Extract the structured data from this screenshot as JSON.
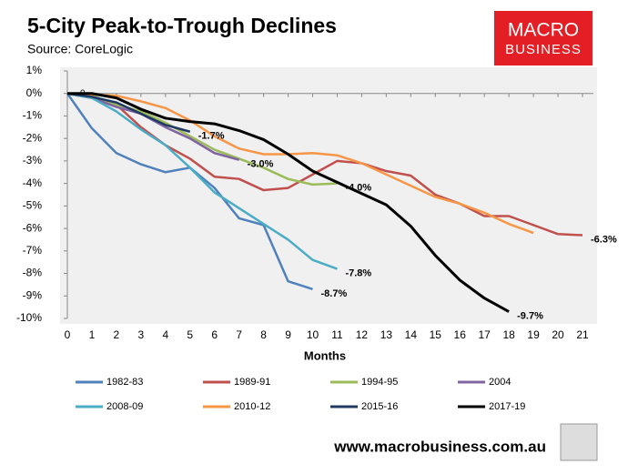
{
  "chart_data": {
    "type": "line",
    "title": "5-City Peak-to-Trough Declines",
    "subtitle": "Source: CoreLogic",
    "logo": [
      "MACRO",
      "BUSINESS"
    ],
    "footer": "www.macrobusiness.com.au",
    "xlabel": "Months",
    "annotations": [
      {
        "text": "0",
        "x": 0.55,
        "y": 0
      }
    ],
    "xlim": [
      0,
      21
    ],
    "xticks": [
      0,
      1,
      2,
      3,
      4,
      5,
      6,
      7,
      8,
      9,
      10,
      11,
      12,
      13,
      14,
      15,
      16,
      17,
      18,
      19,
      20,
      21
    ],
    "ylim": [
      -10,
      1
    ],
    "yticks": [
      {
        "value": 1,
        "label": "1%"
      },
      {
        "value": 0,
        "label": "0%"
      },
      {
        "value": -1,
        "label": "-1%"
      },
      {
        "value": -2,
        "label": "-2%"
      },
      {
        "value": -3,
        "label": "-3%"
      },
      {
        "value": -4,
        "label": "-4%"
      },
      {
        "value": -5,
        "label": "-5%"
      },
      {
        "value": -6,
        "label": "-6%"
      },
      {
        "value": -7,
        "label": "-7%"
      },
      {
        "value": -8,
        "label": "-8%"
      },
      {
        "value": -9,
        "label": "-9%"
      },
      {
        "value": -10,
        "label": "-10%"
      }
    ],
    "grid": false,
    "series": [
      {
        "name": "1982-83",
        "color": "#4f81bd",
        "values": [
          0,
          -1.55,
          -2.65,
          -3.15,
          -3.5,
          -3.3,
          -4.2,
          -5.55,
          -5.85,
          -8.35,
          -8.7
        ],
        "value_labels": [
          null,
          null,
          null,
          null,
          null,
          null,
          null,
          null,
          null,
          null,
          "-8.7%"
        ]
      },
      {
        "name": "1989-91",
        "color": "#c0504d",
        "values": [
          0,
          -0.2,
          -0.5,
          -1.5,
          -2.3,
          -2.9,
          -3.7,
          -3.8,
          -4.3,
          -4.2,
          -3.6,
          -3.0,
          -3.1,
          -3.45,
          -3.65,
          -4.5,
          -4.9,
          -5.45,
          -5.45,
          -5.85,
          -6.25,
          -6.3
        ],
        "value_labels": [
          null,
          null,
          null,
          null,
          null,
          null,
          null,
          null,
          null,
          null,
          null,
          null,
          null,
          null,
          null,
          null,
          null,
          null,
          null,
          null,
          null,
          "-6.3%"
        ]
      },
      {
        "name": "1994-95",
        "color": "#9bbb59",
        "values": [
          0,
          -0.1,
          -0.5,
          -0.8,
          -1.3,
          -1.9,
          -2.5,
          -2.9,
          -3.3,
          -3.8,
          -4.05,
          -4.0
        ],
        "value_labels": [
          null,
          null,
          null,
          null,
          null,
          null,
          null,
          null,
          null,
          null,
          null,
          "-4.0%"
        ]
      },
      {
        "name": "2004",
        "color": "#8064a2",
        "values": [
          0,
          -0.2,
          -0.6,
          -0.9,
          -1.5,
          -2.0,
          -2.65,
          -2.95
        ],
        "value_labels": [
          null,
          null,
          null,
          null,
          null,
          null,
          null,
          "-3.0%"
        ]
      },
      {
        "name": "2008-09",
        "color": "#4bacc6",
        "values": [
          0,
          -0.2,
          -0.8,
          -1.6,
          -2.3,
          -3.3,
          -4.4,
          -5.1,
          -5.8,
          -6.5,
          -7.4,
          -7.8
        ],
        "value_labels": [
          null,
          null,
          null,
          null,
          null,
          null,
          null,
          null,
          null,
          null,
          null,
          "-7.8%"
        ]
      },
      {
        "name": "2010-12",
        "color": "#f79646",
        "values": [
          0,
          -0.05,
          -0.1,
          -0.35,
          -0.65,
          -1.2,
          -1.9,
          -2.45,
          -2.7,
          -2.7,
          -2.65,
          -2.75,
          -3.1,
          -3.6,
          -4.1,
          -4.6,
          -4.9,
          -5.3,
          -5.8,
          -6.2
        ]
      },
      {
        "name": "2015-16",
        "color": "#1f3864",
        "values": [
          0,
          -0.15,
          -0.4,
          -0.9,
          -1.4,
          -1.7
        ],
        "value_labels": [
          null,
          null,
          null,
          null,
          null,
          "-1.7%"
        ]
      },
      {
        "name": "2017-19",
        "color": "#000000",
        "values": [
          0,
          0,
          -0.2,
          -0.7,
          -1.1,
          -1.25,
          -1.35,
          -1.65,
          -2.05,
          -2.7,
          -3.45,
          -3.95,
          -4.45,
          -4.95,
          -5.9,
          -7.2,
          -8.3,
          -9.1,
          -9.7
        ],
        "value_labels": [
          null,
          null,
          null,
          null,
          null,
          null,
          null,
          null,
          null,
          null,
          null,
          null,
          null,
          null,
          null,
          null,
          null,
          null,
          "-9.7%"
        ]
      }
    ]
  }
}
